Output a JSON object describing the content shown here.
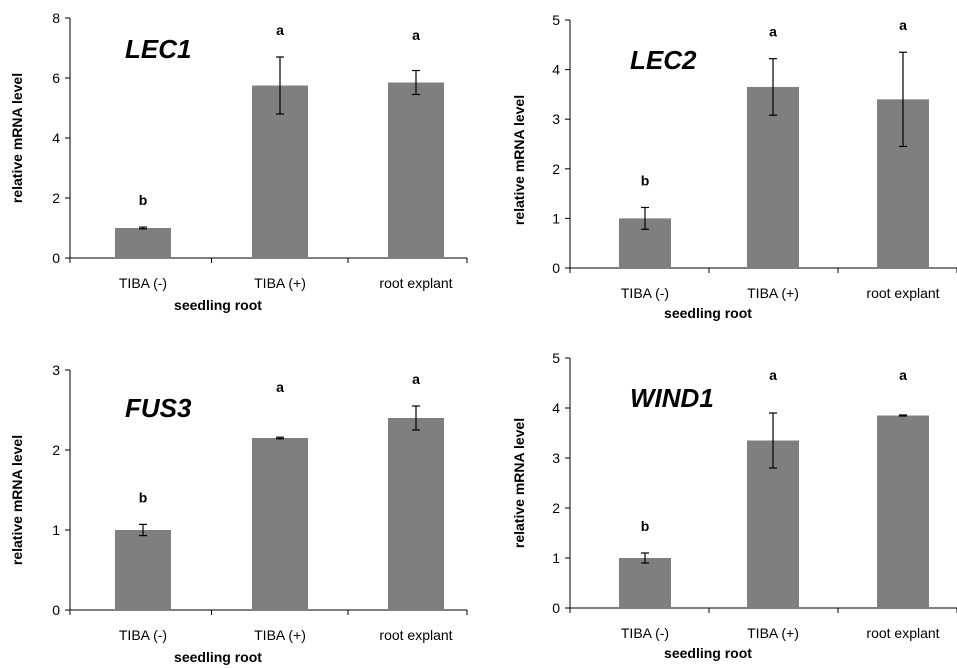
{
  "chart_data": [
    {
      "type": "bar",
      "title": "LEC1",
      "ylabel": "relative mRNA level",
      "xlabel": "seedling root",
      "categories": [
        "TIBA (-)",
        "TIBA (+)",
        "root explant"
      ],
      "values": [
        1.0,
        5.75,
        5.85
      ],
      "errors": [
        0.03,
        0.95,
        0.4
      ],
      "significance": [
        "b",
        "a",
        "a"
      ],
      "ylim": [
        0,
        8
      ],
      "yticks": [
        0,
        2,
        4,
        6,
        8
      ],
      "bar_color": "#7f7f7f",
      "grid": false
    },
    {
      "type": "bar",
      "title": "LEC2",
      "ylabel": "relative mRNA level",
      "xlabel": "seedling root",
      "categories": [
        "TIBA (-)",
        "TIBA (+)",
        "root explant"
      ],
      "values": [
        1.0,
        3.65,
        3.4
      ],
      "errors": [
        0.22,
        0.57,
        0.95
      ],
      "significance": [
        "b",
        "a",
        "a"
      ],
      "ylim": [
        0,
        5
      ],
      "yticks": [
        0,
        1,
        2,
        3,
        4,
        5
      ],
      "bar_color": "#7f7f7f",
      "grid": false
    },
    {
      "type": "bar",
      "title": "FUS3",
      "ylabel": "relative mRNA level",
      "xlabel": "seedling root",
      "categories": [
        "TIBA (-)",
        "TIBA (+)",
        "root explant"
      ],
      "values": [
        1.0,
        2.15,
        2.4
      ],
      "errors": [
        0.07,
        0.01,
        0.15
      ],
      "significance": [
        "b",
        "a",
        "a"
      ],
      "ylim": [
        0,
        3
      ],
      "yticks": [
        0,
        1,
        2,
        3
      ],
      "bar_color": "#7f7f7f",
      "grid": false
    },
    {
      "type": "bar",
      "title": "WIND1",
      "ylabel": "relative mRNA level",
      "xlabel": "seedling root",
      "categories": [
        "TIBA (-)",
        "TIBA (+)",
        "root explant"
      ],
      "values": [
        1.0,
        3.35,
        3.85
      ],
      "errors": [
        0.1,
        0.55,
        0.01
      ],
      "significance": [
        "b",
        "a",
        "a"
      ],
      "ylim": [
        0,
        5
      ],
      "yticks": [
        0,
        1,
        2,
        3,
        4,
        5
      ],
      "bar_color": "#7f7f7f",
      "grid": false
    }
  ]
}
